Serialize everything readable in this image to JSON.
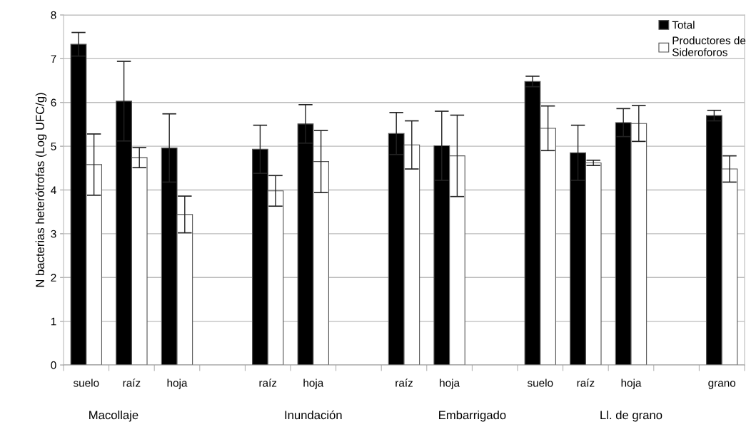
{
  "chart_data": {
    "type": "bar",
    "ylabel": "N bacterias heterótrofas (Log UFC/g)",
    "categories": [
      "suelo",
      "raíz",
      "hoja",
      null,
      "raíz",
      "hoja",
      null,
      "raíz",
      "hoja",
      null,
      "suelo",
      "raíz",
      "hoja",
      null,
      "grano"
    ],
    "series": [
      {
        "name": "Total",
        "color": "#000000",
        "values": [
          7.33,
          6.03,
          4.96,
          null,
          4.93,
          5.51,
          null,
          5.29,
          5.01,
          null,
          6.48,
          4.85,
          5.54,
          null,
          5.7
        ],
        "errors": [
          0.27,
          0.91,
          0.78,
          null,
          0.55,
          0.44,
          null,
          0.48,
          0.79,
          null,
          0.12,
          0.63,
          0.32,
          null,
          0.12
        ]
      },
      {
        "name": "Productores de Sideroforos",
        "color": "#ffffff",
        "values": [
          4.58,
          4.74,
          3.44,
          null,
          3.98,
          4.65,
          null,
          5.03,
          4.78,
          null,
          5.41,
          4.62,
          5.52,
          null,
          4.48
        ],
        "errors": [
          0.7,
          0.23,
          0.42,
          null,
          0.35,
          0.71,
          null,
          0.55,
          0.93,
          null,
          0.51,
          0.06,
          0.41,
          null,
          0.3
        ]
      }
    ],
    "ylim": [
      0,
      8
    ],
    "yticks": [
      0,
      1,
      2,
      3,
      4,
      5,
      6,
      7,
      8
    ],
    "grid": "y",
    "legend": "top right",
    "annotations": [
      "Macollaje",
      "Inundación",
      "Embarrigado",
      "Ll. de grano"
    ]
  }
}
